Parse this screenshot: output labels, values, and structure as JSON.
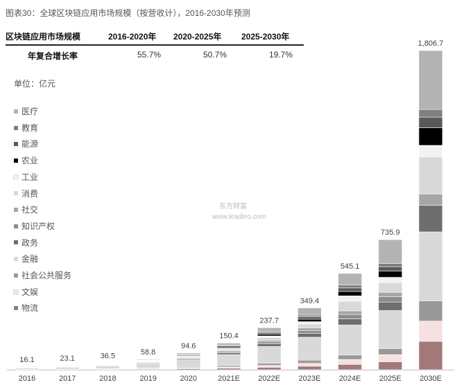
{
  "title": "图表30：全球区块链应用市场规模（按营收计），2016-2030年预测",
  "cagr": {
    "header_label": "区块链应用市场规模",
    "periods": [
      "2016-2020年",
      "2020-2025年",
      "2025-2030年"
    ],
    "row_label": "年复合增长率",
    "values": [
      "55.7%",
      "50.7%",
      "19.7%"
    ]
  },
  "unit_label": "单位：亿元",
  "watermark": {
    "line1": "东方财富",
    "line2": "www.leadleo.com"
  },
  "legend": [
    {
      "name": "医疗",
      "color": "#b3b3b3"
    },
    {
      "name": "教育",
      "color": "#7f7f7f"
    },
    {
      "name": "能源",
      "color": "#595959"
    },
    {
      "name": "农业",
      "color": "#000000"
    },
    {
      "name": "工业",
      "color": "#f2f2f2"
    },
    {
      "name": "消费",
      "color": "#d9d9d9"
    },
    {
      "name": "社交",
      "color": "#a6a6a6"
    },
    {
      "name": "知识产权",
      "color": "#8c8c8c"
    },
    {
      "name": "政务",
      "color": "#6e6e6e"
    },
    {
      "name": "金融",
      "color": "#d9d9d9"
    },
    {
      "name": "社会公共服务",
      "color": "#999999"
    },
    {
      "name": "文娱",
      "color": "#f5e1e1"
    },
    {
      "name": "物流",
      "color": "#a37878"
    }
  ],
  "chart_data": {
    "type": "bar",
    "stacked": true,
    "categories": [
      "2016",
      "2017",
      "2018",
      "2019",
      "2020",
      "2021E",
      "2022E",
      "2023E",
      "2024E",
      "2025E",
      "2030E"
    ],
    "totals": [
      16.1,
      23.1,
      36.5,
      58.8,
      94.6,
      150.4,
      237.7,
      349.4,
      545.1,
      735.9,
      1806.7
    ],
    "total_labels": [
      "16.1",
      "23.1",
      "36.5",
      "58.8",
      "94.6",
      "150.4",
      "237.7",
      "349.4",
      "545.1",
      "735.9",
      "1,806.7"
    ],
    "stack_order_bottom_to_top": [
      "物流",
      "文娱",
      "社会公共服务",
      "金融",
      "政务",
      "知识产权",
      "社交",
      "消费",
      "工业",
      "农业",
      "能源",
      "教育",
      "医疗"
    ],
    "series": [
      {
        "name": "物流",
        "values": [
          1.0,
          1.4,
          2.2,
          3.5,
          5.5,
          8.5,
          13.5,
          20.0,
          30.0,
          45.0,
          160.0
        ]
      },
      {
        "name": "文娱",
        "values": [
          0.6,
          0.9,
          1.4,
          2.3,
          3.8,
          6.5,
          11.0,
          16.0,
          28.0,
          40.0,
          115.0
        ]
      },
      {
        "name": "社会公共服务",
        "values": [
          0.8,
          1.2,
          1.9,
          3.0,
          5.0,
          7.5,
          12.0,
          18.0,
          25.0,
          35.0,
          115.0
        ]
      },
      {
        "name": "金融",
        "values": [
          7.5,
          10.5,
          16.5,
          26.0,
          41.0,
          63.0,
          95.0,
          130.0,
          170.0,
          215.0,
          390.0
        ]
      },
      {
        "name": "政务",
        "values": [
          1.0,
          1.4,
          2.2,
          3.5,
          5.8,
          9.5,
          15.0,
          22.0,
          35.0,
          48.0,
          150.0
        ]
      },
      {
        "name": "知识产权",
        "values": [
          0.7,
          1.0,
          1.6,
          2.6,
          4.2,
          6.5,
          11.0,
          16.0,
          25.0,
          30.0,
          0.0
        ]
      },
      {
        "name": "社交",
        "values": [
          0.6,
          0.9,
          1.4,
          2.3,
          3.6,
          6.0,
          9.5,
          14.0,
          20.0,
          25.0,
          65.0
        ]
      },
      {
        "name": "消费",
        "values": [
          1.0,
          1.4,
          2.2,
          3.5,
          5.5,
          9.0,
          15.0,
          22.0,
          55.0,
          55.0,
          210.0
        ]
      },
      {
        "name": "工业",
        "values": [
          0.6,
          0.9,
          1.4,
          2.3,
          3.7,
          6.0,
          9.0,
          14.0,
          30.0,
          30.0,
          65.0
        ]
      },
      {
        "name": "农业",
        "values": [
          0.6,
          0.9,
          1.4,
          2.3,
          3.7,
          6.0,
          9.5,
          14.0,
          25.0,
          35.0,
          100.0
        ]
      },
      {
        "name": "能源",
        "values": [
          0.6,
          0.9,
          1.4,
          2.3,
          3.7,
          6.0,
          9.5,
          14.0,
          20.0,
          25.0,
          60.0
        ]
      },
      {
        "name": "教育",
        "values": [
          0.4,
          0.5,
          0.9,
          1.4,
          2.3,
          3.9,
          6.2,
          9.4,
          16.1,
          17.9,
          42.7
        ]
      },
      {
        "name": "医疗",
        "values": [
          0.7,
          1.2,
          2.0,
          3.8,
          6.8,
          12.0,
          21.5,
          40.0,
          66.0,
          135.0,
          334.0
        ]
      }
    ]
  }
}
